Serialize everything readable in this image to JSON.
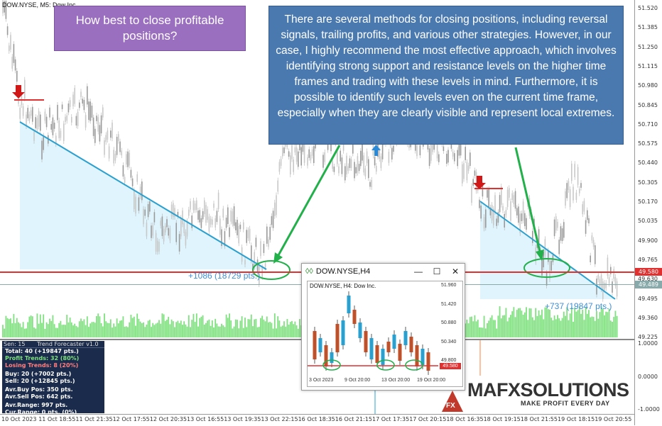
{
  "chart": {
    "symbol_label": "DOW.NYSE, M5:  Dow Inc.",
    "price_ticks": [
      "51.520",
      "51.385",
      "51.250",
      "51.115",
      "50.980",
      "50.845",
      "50.710",
      "50.575",
      "50.440",
      "50.305",
      "50.170",
      "50.035",
      "49.900",
      "49.765",
      "49.630",
      "49.495",
      "49.360",
      "49.225"
    ],
    "price_badges": {
      "resistance": "49.580",
      "current": "49.489"
    },
    "sub_ticks": [
      "1.0000",
      "0.0000",
      "-1.0000"
    ],
    "time_ticks": [
      "10 Oct 2023",
      "11 Oct 18:55",
      "11 Oct 21:35",
      "12 Oct 17:55",
      "12 Oct 20:35",
      "13 Oct 16:55",
      "13 Oct 19:35",
      "13 Oct 22:15",
      "16 Oct 18:35",
      "16 Oct 21:15",
      "17 Oct 17:35",
      "17 Oct 20:15",
      "18 Oct 16:35",
      "18 Oct 19:15",
      "18 Oct 21:55",
      "19 Oct 18:15",
      "19 Oct 20:55"
    ],
    "trend_labels": [
      "+1086 (18729 pts.)",
      "+737 (19847 pts.)"
    ],
    "colors": {
      "bull_candle": "#a0a0a0",
      "resistance": "#e03030",
      "trend": "#2aa0d0",
      "volume": "#7fe07f",
      "arrow_green": "#22b04a"
    }
  },
  "callouts": {
    "question": "How best to close profitable positions?",
    "answer": "There are several methods for closing positions, including reversal signals, trailing profits, and various other strategies. However, in our case, I highly recommend the most effective approach, which involves identifying strong support and resistance levels on the higher time frames and trading with these levels in mind. Furthermore, it is possible to identify such levels even on the current time frame, especially when they are clearly visible and represent local extremes."
  },
  "indicator": {
    "sen_label": "Sen: 15",
    "title": "Trend Forecaster v1.0",
    "rows": [
      {
        "text": "Total: 40 (+19847 pts.)",
        "color": "#ffffff"
      },
      {
        "text": "Profit Trends: 32 (80%)",
        "color": "#7fe07f"
      },
      {
        "text": "Losing Trends: 8 (20%)",
        "color": "#ff8080"
      },
      {
        "text": "",
        "color": "#ffffff"
      },
      {
        "text": "Buy: 20 (+7002 pts.)",
        "color": "#ffffff"
      },
      {
        "text": "Sell: 20 (+12845 pts.)",
        "color": "#ffffff"
      },
      {
        "text": "",
        "color": "#ffffff"
      },
      {
        "text": "Avr.Buy Pos: 350 pts.",
        "color": "#ffffff"
      },
      {
        "text": "Avr.Sell Pos: 642 pts.",
        "color": "#ffffff"
      },
      {
        "text": "",
        "color": "#ffffff"
      },
      {
        "text": "Avr.Range: 997 pts.",
        "color": "#ffffff"
      },
      {
        "text": "Cur.Range: 0 pts. (0%)",
        "color": "#ffffff"
      }
    ]
  },
  "inset": {
    "window_title": "DOW.NYSE,H4",
    "symbol_label": "DOW.NYSE, H4:  Dow Inc.",
    "price_ticks": [
      "51.960",
      "51.420",
      "50.880",
      "50.340",
      "49.800"
    ],
    "price_badge": "49.580",
    "time_ticks": [
      "3 Oct 2023",
      "9 Oct 20:00",
      "13 Oct 20:00",
      "19 Oct 20:00"
    ],
    "buttons": {
      "minimize": "—",
      "maximize": "☐",
      "close": "✕"
    }
  },
  "logo": {
    "brand": "MAFXSOLUTIONS",
    "tagline": "MAKE PROFIT EVERY DAY",
    "badge": "FX"
  }
}
